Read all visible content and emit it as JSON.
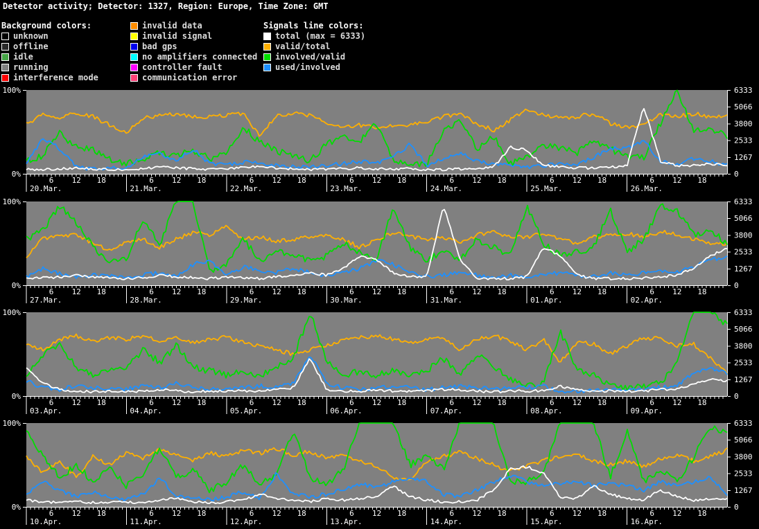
{
  "title": "Detector activity; Detector: 1327, Region: Europe, Time Zone: GMT",
  "legend": {
    "background_header": "Background colors:",
    "background_items": [
      {
        "label": "unknown",
        "color": "#000000"
      },
      {
        "label": "offline",
        "color": "#2a2a2a"
      },
      {
        "label": "idle",
        "color": "#46a546"
      },
      {
        "label": "running",
        "color": "#808080"
      },
      {
        "label": "interference mode",
        "color": "#ff0000"
      }
    ],
    "status_items": [
      {
        "label": "invalid data",
        "color": "#ff8c00"
      },
      {
        "label": "invalid signal",
        "color": "#ffff00"
      },
      {
        "label": "bad gps",
        "color": "#0000ee"
      },
      {
        "label": "no amplifiers connected",
        "color": "#00ffff"
      },
      {
        "label": "controller fault",
        "color": "#ff00ff"
      },
      {
        "label": "communication error",
        "color": "#ff4077"
      }
    ],
    "signals_header": "Signals line colors:",
    "signal_items": [
      {
        "label": "total (max = 6333)",
        "color": "#ffffff"
      },
      {
        "label": "valid/total",
        "color": "#ffb000"
      },
      {
        "label": "involved/valid",
        "color": "#00dd00"
      },
      {
        "label": "used/involved",
        "color": "#1e90ff"
      }
    ]
  },
  "chart_data": {
    "type": "line",
    "plot_background": "#808080",
    "y_left_top_label": "100%",
    "y_left_bottom_label": "0%",
    "y_right_max": 6333,
    "y_right_ticks": [
      "6333",
      "5066",
      "3800",
      "2533",
      "1267",
      "0"
    ],
    "hour_labels": [
      "6",
      "12",
      "18"
    ],
    "hours_per_strip": 168,
    "sample_interval_hours": 4,
    "series_order": [
      "valid_total",
      "involved_valid",
      "used_involved",
      "total"
    ],
    "series_meta": {
      "total": {
        "name": "total",
        "color": "#ffffff",
        "jitter": 1.5
      },
      "valid_total": {
        "name": "valid/total",
        "color": "#ffb000",
        "jitter": 2.5
      },
      "involved_valid": {
        "name": "involved/valid",
        "color": "#00dd00",
        "jitter": 4
      },
      "used_involved": {
        "name": "used/involved",
        "color": "#1e90ff",
        "jitter": 2.5
      }
    },
    "strips": [
      {
        "days": [
          "20.Mar.",
          "21.Mar.",
          "22.Mar.",
          "23.Mar.",
          "24.Mar.",
          "25.Mar.",
          "26.Mar."
        ],
        "series": {
          "valid_total": [
            60,
            70,
            66,
            73,
            68,
            58,
            50,
            66,
            70,
            71,
            69,
            68,
            70,
            72,
            45,
            70,
            72,
            70,
            60,
            57,
            58,
            55,
            57,
            58,
            62,
            68,
            72,
            60,
            52,
            64,
            78,
            70,
            66,
            68,
            72,
            60,
            55,
            60,
            70,
            68,
            72,
            68,
            70
          ],
          "involved_valid": [
            15,
            22,
            48,
            32,
            30,
            18,
            12,
            18,
            25,
            22,
            28,
            18,
            25,
            55,
            38,
            28,
            20,
            16,
            35,
            45,
            40,
            60,
            15,
            12,
            12,
            50,
            65,
            30,
            45,
            12,
            20,
            35,
            30,
            25,
            40,
            30,
            20,
            20,
            60,
            100,
            50,
            55,
            45
          ],
          "used_involved": [
            12,
            42,
            30,
            8,
            6,
            6,
            8,
            20,
            25,
            15,
            30,
            12,
            10,
            14,
            12,
            10,
            8,
            8,
            10,
            12,
            15,
            12,
            20,
            35,
            10,
            18,
            25,
            15,
            12,
            10,
            8,
            10,
            12,
            10,
            20,
            30,
            30,
            40,
            15,
            12,
            18,
            15,
            10
          ],
          "total": [
            5,
            5,
            6,
            7,
            6,
            5,
            5,
            6,
            8,
            7,
            6,
            5,
            6,
            8,
            9,
            7,
            6,
            5,
            5,
            6,
            7,
            6,
            6,
            6,
            5,
            5,
            6,
            6,
            8,
            32,
            28,
            10,
            8,
            7,
            7,
            8,
            10,
            80,
            15,
            10,
            10,
            12,
            10
          ]
        }
      },
      {
        "days": [
          "27.Mar.",
          "28.Mar.",
          "29.Mar.",
          "30.Mar.",
          "31.Mar.",
          "01.Apr.",
          "02.Apr."
        ],
        "series": {
          "valid_total": [
            35,
            55,
            58,
            60,
            50,
            42,
            52,
            55,
            45,
            55,
            63,
            60,
            70,
            55,
            58,
            52,
            55,
            58,
            60,
            55,
            45,
            55,
            62,
            58,
            55,
            58,
            50,
            60,
            64,
            58,
            58,
            62,
            55,
            50,
            58,
            60,
            62,
            58,
            64,
            60,
            55,
            50,
            50
          ],
          "involved_valid": [
            55,
            65,
            95,
            75,
            45,
            28,
            30,
            80,
            50,
            100,
            100,
            15,
            25,
            55,
            30,
            40,
            35,
            30,
            35,
            50,
            40,
            30,
            95,
            45,
            30,
            40,
            30,
            55,
            45,
            35,
            95,
            50,
            35,
            40,
            45,
            90,
            40,
            55,
            95,
            90,
            60,
            65,
            50
          ],
          "used_involved": [
            10,
            20,
            14,
            10,
            12,
            12,
            10,
            12,
            15,
            12,
            25,
            30,
            12,
            22,
            18,
            15,
            20,
            15,
            12,
            15,
            20,
            30,
            25,
            15,
            10,
            12,
            15,
            12,
            10,
            12,
            10,
            12,
            15,
            12,
            10,
            15,
            12,
            15,
            18,
            15,
            22,
            30,
            35
          ],
          "total": [
            8,
            9,
            10,
            12,
            10,
            9,
            8,
            9,
            12,
            10,
            9,
            8,
            10,
            9,
            8,
            10,
            12,
            15,
            12,
            20,
            35,
            30,
            15,
            10,
            10,
            95,
            30,
            8,
            8,
            8,
            10,
            45,
            35,
            12,
            8,
            8,
            8,
            9,
            10,
            12,
            20,
            35,
            45
          ]
        }
      },
      {
        "days": [
          "03.Apr.",
          "04.Apr.",
          "05.Apr.",
          "06.Apr.",
          "07.Apr.",
          "08.Apr.",
          "09.Apr."
        ],
        "series": {
          "valid_total": [
            62,
            55,
            68,
            72,
            66,
            70,
            68,
            72,
            66,
            70,
            64,
            68,
            70,
            65,
            60,
            55,
            50,
            55,
            60,
            66,
            70,
            72,
            68,
            64,
            68,
            70,
            55,
            68,
            72,
            66,
            55,
            68,
            40,
            65,
            62,
            50,
            60,
            70,
            68,
            60,
            62,
            45,
            28
          ],
          "involved_valid": [
            25,
            50,
            60,
            35,
            25,
            30,
            35,
            55,
            40,
            60,
            35,
            30,
            25,
            30,
            25,
            35,
            45,
            100,
            40,
            25,
            30,
            25,
            30,
            25,
            30,
            45,
            25,
            50,
            35,
            20,
            12,
            15,
            78,
            30,
            25,
            12,
            10,
            12,
            15,
            40,
            100,
            100,
            85
          ],
          "used_involved": [
            18,
            10,
            8,
            12,
            10,
            8,
            8,
            12,
            10,
            15,
            10,
            8,
            8,
            10,
            12,
            10,
            15,
            50,
            15,
            10,
            8,
            10,
            12,
            10,
            8,
            10,
            12,
            10,
            8,
            10,
            10,
            12,
            6,
            6,
            6,
            8,
            6,
            8,
            10,
            12,
            28,
            32,
            28
          ],
          "total": [
            35,
            15,
            8,
            6,
            5,
            6,
            5,
            6,
            8,
            6,
            5,
            6,
            6,
            6,
            6,
            8,
            10,
            45,
            8,
            6,
            6,
            7,
            6,
            6,
            6,
            8,
            7,
            6,
            5,
            6,
            6,
            6,
            12,
            7,
            6,
            6,
            6,
            6,
            8,
            8,
            15,
            20,
            18
          ]
        }
      },
      {
        "days": [
          "10.Apr.",
          "11.Apr.",
          "12.Apr.",
          "13.Apr.",
          "14.Apr.",
          "15.Apr.",
          "16.Apr."
        ],
        "series": {
          "valid_total": [
            60,
            40,
            55,
            35,
            60,
            50,
            65,
            58,
            68,
            62,
            55,
            65,
            60,
            68,
            64,
            70,
            62,
            66,
            58,
            62,
            55,
            48,
            35,
            30,
            55,
            60,
            65,
            58,
            50,
            42,
            50,
            55,
            60,
            62,
            55,
            50,
            55,
            48,
            58,
            62,
            55,
            60,
            68
          ],
          "involved_valid": [
            90,
            60,
            35,
            50,
            30,
            45,
            25,
            40,
            70,
            35,
            45,
            20,
            30,
            50,
            25,
            40,
            90,
            35,
            25,
            45,
            100,
            100,
            100,
            50,
            60,
            45,
            100,
            100,
            100,
            30,
            30,
            40,
            100,
            100,
            100,
            35,
            90,
            30,
            45,
            30,
            60,
            95,
            90
          ],
          "used_involved": [
            15,
            30,
            20,
            12,
            18,
            10,
            8,
            15,
            35,
            12,
            10,
            8,
            12,
            18,
            10,
            40,
            15,
            12,
            15,
            20,
            28,
            22,
            30,
            35,
            30,
            15,
            12,
            20,
            30,
            38,
            30,
            25,
            28,
            30,
            25,
            28,
            25,
            20,
            30,
            25,
            30,
            35,
            15
          ],
          "total": [
            8,
            6,
            5,
            6,
            5,
            6,
            5,
            6,
            8,
            10,
            6,
            5,
            6,
            8,
            15,
            10,
            8,
            6,
            10,
            8,
            10,
            12,
            25,
            12,
            8,
            6,
            6,
            8,
            20,
            45,
            48,
            40,
            12,
            10,
            25,
            15,
            10,
            8,
            20,
            12,
            8,
            10,
            9
          ]
        }
      }
    ]
  }
}
